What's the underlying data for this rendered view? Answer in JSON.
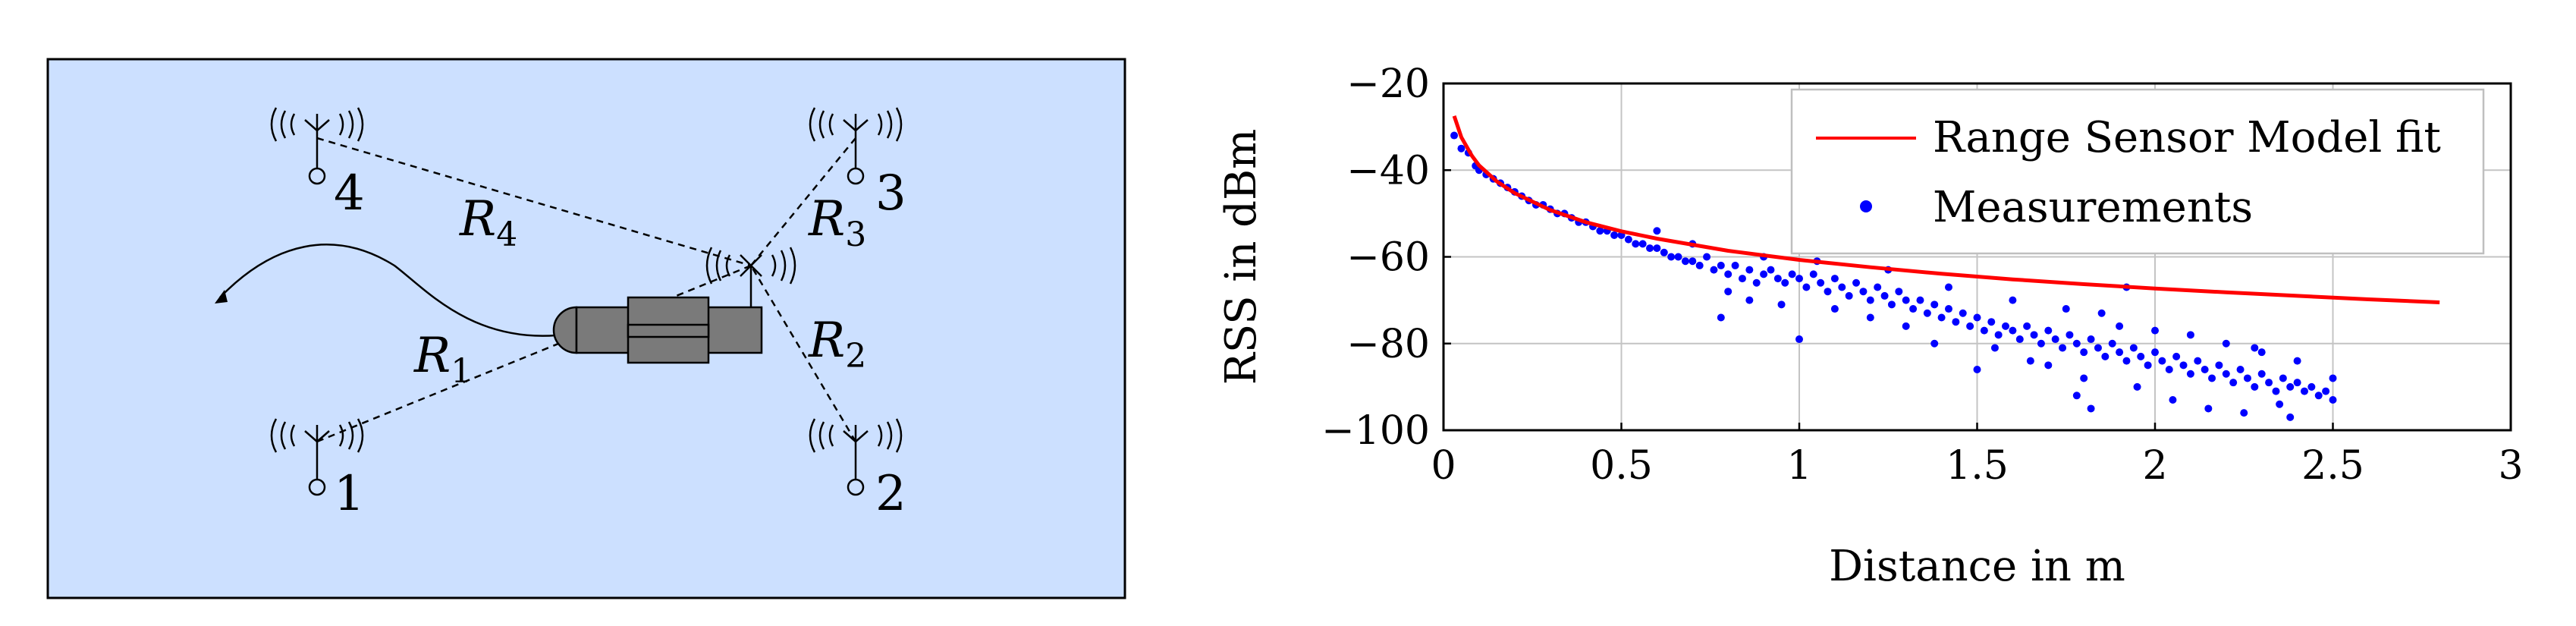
{
  "diagram": {
    "background_color": "#cce0ff",
    "anchors": [
      {
        "label": "4"
      },
      {
        "label": "3"
      },
      {
        "label": "1"
      },
      {
        "label": "2"
      }
    ],
    "range_labels": [
      {
        "symbol": "R",
        "sub": "4"
      },
      {
        "symbol": "R",
        "sub": "3"
      },
      {
        "symbol": "R",
        "sub": "1"
      },
      {
        "symbol": "R",
        "sub": "2"
      }
    ],
    "vehicle_color": "#7a7a7a"
  },
  "chart_data": {
    "type": "scatter",
    "title": "",
    "xlabel": "Distance in m",
    "ylabel": "RSS in dBm",
    "xlim": [
      0,
      3
    ],
    "ylim": [
      -100,
      -20
    ],
    "xticks": [
      {
        "value": 0,
        "label": "0"
      },
      {
        "value": 0.5,
        "label": "0.5"
      },
      {
        "value": 1,
        "label": "1"
      },
      {
        "value": 1.5,
        "label": "1.5"
      },
      {
        "value": 2,
        "label": "2"
      },
      {
        "value": 2.5,
        "label": "2.5"
      },
      {
        "value": 3,
        "label": "3"
      }
    ],
    "yticks": [
      {
        "value": -20,
        "label": "−20"
      },
      {
        "value": -40,
        "label": "−40"
      },
      {
        "value": -60,
        "label": "−60"
      },
      {
        "value": -80,
        "label": "−80"
      },
      {
        "value": -100,
        "label": "−100"
      }
    ],
    "grid": true,
    "legend_position": "top-right",
    "series": [
      {
        "name": "Range Sensor Model fit",
        "kind": "line",
        "color": "#ff0000",
        "points": [
          [
            0.03,
            -27.5
          ],
          [
            0.05,
            -32.4
          ],
          [
            0.08,
            -36.7
          ],
          [
            0.1,
            -38.9
          ],
          [
            0.15,
            -42.6
          ],
          [
            0.2,
            -45.3
          ],
          [
            0.3,
            -49.2
          ],
          [
            0.4,
            -52.0
          ],
          [
            0.5,
            -54.1
          ],
          [
            0.6,
            -55.8
          ],
          [
            0.8,
            -58.6
          ],
          [
            1.0,
            -60.7
          ],
          [
            1.2,
            -62.4
          ],
          [
            1.4,
            -63.9
          ],
          [
            1.6,
            -65.2
          ],
          [
            1.8,
            -66.3
          ],
          [
            2.0,
            -67.3
          ],
          [
            2.2,
            -68.2
          ],
          [
            2.4,
            -69.0
          ],
          [
            2.6,
            -69.8
          ],
          [
            2.8,
            -70.5
          ]
        ]
      },
      {
        "name": "Measurements",
        "kind": "scatter",
        "color": "#0000ff",
        "points": [
          [
            0.03,
            -32
          ],
          [
            0.05,
            -35
          ],
          [
            0.07,
            -36
          ],
          [
            0.09,
            -39
          ],
          [
            0.1,
            -40
          ],
          [
            0.12,
            -41
          ],
          [
            0.14,
            -42
          ],
          [
            0.16,
            -43
          ],
          [
            0.18,
            -44
          ],
          [
            0.2,
            -45
          ],
          [
            0.22,
            -46
          ],
          [
            0.24,
            -47
          ],
          [
            0.26,
            -48
          ],
          [
            0.28,
            -48
          ],
          [
            0.3,
            -49
          ],
          [
            0.32,
            -50
          ],
          [
            0.34,
            -50
          ],
          [
            0.36,
            -51
          ],
          [
            0.38,
            -52
          ],
          [
            0.4,
            -52
          ],
          [
            0.42,
            -53
          ],
          [
            0.44,
            -54
          ],
          [
            0.46,
            -54
          ],
          [
            0.48,
            -55
          ],
          [
            0.5,
            -55
          ],
          [
            0.52,
            -56
          ],
          [
            0.54,
            -57
          ],
          [
            0.56,
            -57
          ],
          [
            0.58,
            -58
          ],
          [
            0.6,
            -58
          ],
          [
            0.62,
            -59
          ],
          [
            0.64,
            -60
          ],
          [
            0.66,
            -60
          ],
          [
            0.68,
            -61
          ],
          [
            0.7,
            -61
          ],
          [
            0.72,
            -62
          ],
          [
            0.74,
            -60
          ],
          [
            0.76,
            -63
          ],
          [
            0.78,
            -62
          ],
          [
            0.8,
            -64
          ],
          [
            0.82,
            -62
          ],
          [
            0.84,
            -65
          ],
          [
            0.86,
            -63
          ],
          [
            0.88,
            -66
          ],
          [
            0.9,
            -64
          ],
          [
            0.92,
            -63
          ],
          [
            0.94,
            -65
          ],
          [
            0.96,
            -66
          ],
          [
            0.98,
            -64
          ],
          [
            1.0,
            -65
          ],
          [
            1.02,
            -67
          ],
          [
            1.04,
            -64
          ],
          [
            1.06,
            -66
          ],
          [
            1.08,
            -68
          ],
          [
            1.1,
            -65
          ],
          [
            1.12,
            -67
          ],
          [
            1.14,
            -69
          ],
          [
            1.16,
            -66
          ],
          [
            1.18,
            -68
          ],
          [
            1.2,
            -70
          ],
          [
            1.22,
            -67
          ],
          [
            1.24,
            -69
          ],
          [
            1.26,
            -71
          ],
          [
            1.28,
            -68
          ],
          [
            1.3,
            -70
          ],
          [
            1.32,
            -72
          ],
          [
            1.34,
            -70
          ],
          [
            1.36,
            -73
          ],
          [
            1.38,
            -71
          ],
          [
            1.4,
            -74
          ],
          [
            1.42,
            -72
          ],
          [
            1.44,
            -75
          ],
          [
            1.46,
            -73
          ],
          [
            1.48,
            -76
          ],
          [
            1.5,
            -74
          ],
          [
            1.52,
            -77
          ],
          [
            1.54,
            -75
          ],
          [
            1.56,
            -78
          ],
          [
            1.58,
            -76
          ],
          [
            1.6,
            -77
          ],
          [
            1.62,
            -79
          ],
          [
            1.64,
            -76
          ],
          [
            1.66,
            -78
          ],
          [
            1.68,
            -80
          ],
          [
            1.7,
            -77
          ],
          [
            1.72,
            -79
          ],
          [
            1.74,
            -81
          ],
          [
            1.76,
            -78
          ],
          [
            1.78,
            -80
          ],
          [
            1.8,
            -82
          ],
          [
            1.82,
            -79
          ],
          [
            1.84,
            -81
          ],
          [
            1.86,
            -83
          ],
          [
            1.88,
            -80
          ],
          [
            1.9,
            -82
          ],
          [
            1.92,
            -84
          ],
          [
            1.94,
            -81
          ],
          [
            1.96,
            -83
          ],
          [
            1.98,
            -85
          ],
          [
            2.0,
            -82
          ],
          [
            2.02,
            -84
          ],
          [
            2.04,
            -86
          ],
          [
            2.06,
            -83
          ],
          [
            2.08,
            -85
          ],
          [
            2.1,
            -87
          ],
          [
            2.12,
            -84
          ],
          [
            2.14,
            -86
          ],
          [
            2.16,
            -88
          ],
          [
            2.18,
            -85
          ],
          [
            2.2,
            -87
          ],
          [
            2.22,
            -89
          ],
          [
            2.24,
            -86
          ],
          [
            2.26,
            -88
          ],
          [
            2.28,
            -90
          ],
          [
            2.3,
            -87
          ],
          [
            2.32,
            -89
          ],
          [
            2.34,
            -91
          ],
          [
            2.36,
            -88
          ],
          [
            2.38,
            -90
          ],
          [
            2.4,
            -89
          ],
          [
            2.42,
            -91
          ],
          [
            2.44,
            -90
          ],
          [
            2.46,
            -92
          ],
          [
            2.48,
            -91
          ],
          [
            2.5,
            -93
          ],
          [
            0.6,
            -54
          ],
          [
            0.7,
            -57
          ],
          [
            0.78,
            -74
          ],
          [
            0.8,
            -68
          ],
          [
            0.86,
            -70
          ],
          [
            0.9,
            -60
          ],
          [
            0.95,
            -71
          ],
          [
            1.0,
            -79
          ],
          [
            1.05,
            -61
          ],
          [
            1.1,
            -72
          ],
          [
            1.2,
            -74
          ],
          [
            1.25,
            -63
          ],
          [
            1.3,
            -76
          ],
          [
            1.38,
            -80
          ],
          [
            1.42,
            -67
          ],
          [
            1.5,
            -86
          ],
          [
            1.55,
            -81
          ],
          [
            1.6,
            -70
          ],
          [
            1.65,
            -84
          ],
          [
            1.7,
            -85
          ],
          [
            1.75,
            -72
          ],
          [
            1.8,
            -88
          ],
          [
            1.85,
            -73
          ],
          [
            1.9,
            -76
          ],
          [
            1.95,
            -90
          ],
          [
            2.0,
            -77
          ],
          [
            2.05,
            -93
          ],
          [
            2.1,
            -78
          ],
          [
            2.15,
            -95
          ],
          [
            2.2,
            -80
          ],
          [
            2.25,
            -96
          ],
          [
            2.3,
            -82
          ],
          [
            2.35,
            -94
          ],
          [
            2.4,
            -84
          ],
          [
            2.5,
            -88
          ],
          [
            1.82,
            -95
          ],
          [
            1.78,
            -92
          ],
          [
            2.38,
            -97
          ],
          [
            1.92,
            -67
          ],
          [
            2.28,
            -81
          ]
        ]
      }
    ]
  }
}
